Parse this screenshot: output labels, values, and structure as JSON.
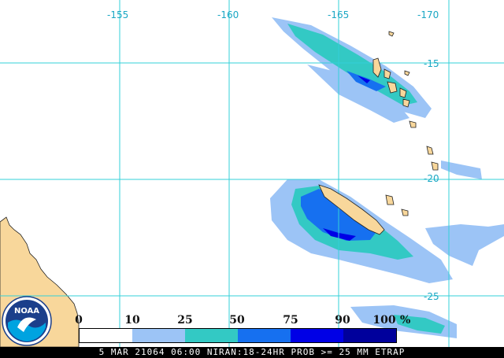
{
  "map": {
    "longitude_labels": [
      "-155",
      "-160",
      "-165",
      "-170"
    ],
    "latitude_labels": [
      "-15",
      "-20",
      "-25"
    ],
    "colors": {
      "land": "#f8d79b",
      "grid": "#33d0d8",
      "band_25": "#9cc4f6",
      "band_50": "#33c9c4",
      "band_75": "#1670f0",
      "band_90": "#0000e6",
      "band_100": "#00009c"
    }
  },
  "legend": {
    "ticks": [
      "0",
      "10",
      "25",
      "50",
      "75",
      "90",
      "100"
    ],
    "unit": "%",
    "colors": [
      "#ffffff",
      "#9cc4f6",
      "#33c9c4",
      "#1670f0",
      "#0000e6",
      "#00009c"
    ]
  },
  "logo": {
    "text": "NOAA",
    "icon": "noaa-logo-icon"
  },
  "footer": {
    "text": "5 MAR 21064 06:00 NIRAN:18-24HR PROB >= 25 MM ETRAP"
  }
}
